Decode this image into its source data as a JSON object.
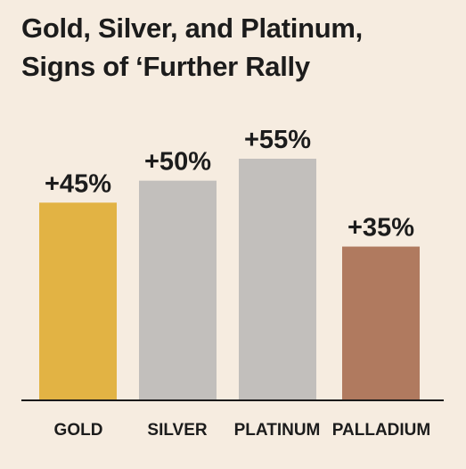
{
  "chart_data": {
    "type": "bar",
    "title_lines": [
      "Gold, Silver, and Platinum,",
      "Signs of ‘Further Rally"
    ],
    "categories": [
      "GOLD",
      "SILVER",
      "PLATINUM",
      "PALLADIUM"
    ],
    "values": [
      45,
      50,
      55,
      35
    ],
    "value_labels": [
      "+45%",
      "+50%",
      "+55%",
      "+35%"
    ],
    "colors": [
      "#e2b344",
      "#c2bfbc",
      "#c2bfbc",
      "#b07a5f"
    ],
    "baseline_color": "#1a1a1a",
    "ylim": [
      0,
      55
    ],
    "grid": false,
    "legend": "none",
    "xlabel": "",
    "ylabel": ""
  }
}
